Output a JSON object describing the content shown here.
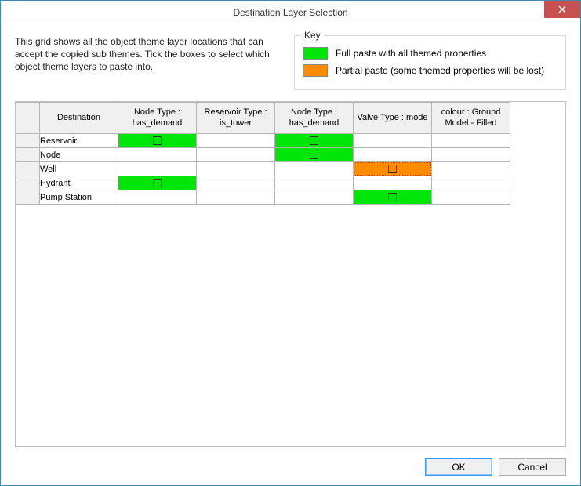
{
  "window": {
    "title": "Destination Layer Selection"
  },
  "description": "This grid shows all the object theme layer locations that can accept the copied sub themes. Tick the boxes to select which object theme layers to paste into.",
  "key": {
    "label": "Key",
    "full": {
      "color": "#00e609",
      "text": "Full paste with all themed properties"
    },
    "partial": {
      "color": "#ff8c00",
      "text": "Partial paste (some themed properties will be lost)"
    }
  },
  "columns": [
    "Destination",
    "Node Type : has_demand",
    "Reservoir Type : is_tower",
    "Node Type : has_demand",
    "Valve Type : mode",
    "colour : Ground Model - Filled"
  ],
  "rows": [
    {
      "dest": "Reservoir",
      "cells": [
        {
          "state": "full",
          "checked": false
        },
        {
          "state": "none"
        },
        {
          "state": "full",
          "checked": false
        },
        {
          "state": "none"
        },
        {
          "state": "none"
        }
      ]
    },
    {
      "dest": "Node",
      "cells": [
        {
          "state": "none"
        },
        {
          "state": "none"
        },
        {
          "state": "full",
          "checked": false
        },
        {
          "state": "none"
        },
        {
          "state": "none"
        }
      ]
    },
    {
      "dest": "Well",
      "cells": [
        {
          "state": "none"
        },
        {
          "state": "none"
        },
        {
          "state": "none"
        },
        {
          "state": "partial",
          "checked": false,
          "focused": true
        },
        {
          "state": "none"
        }
      ]
    },
    {
      "dest": "Hydrant",
      "cells": [
        {
          "state": "full",
          "checked": false
        },
        {
          "state": "none"
        },
        {
          "state": "none"
        },
        {
          "state": "none"
        },
        {
          "state": "none"
        }
      ]
    },
    {
      "dest": "Pump Station",
      "cells": [
        {
          "state": "none"
        },
        {
          "state": "none"
        },
        {
          "state": "none"
        },
        {
          "state": "full",
          "checked": false
        },
        {
          "state": "none"
        }
      ]
    }
  ],
  "buttons": {
    "ok": "OK",
    "cancel": "Cancel"
  },
  "colors": {
    "full": "#00e609",
    "partial": "#ff8c00",
    "none": "#ffffff"
  }
}
